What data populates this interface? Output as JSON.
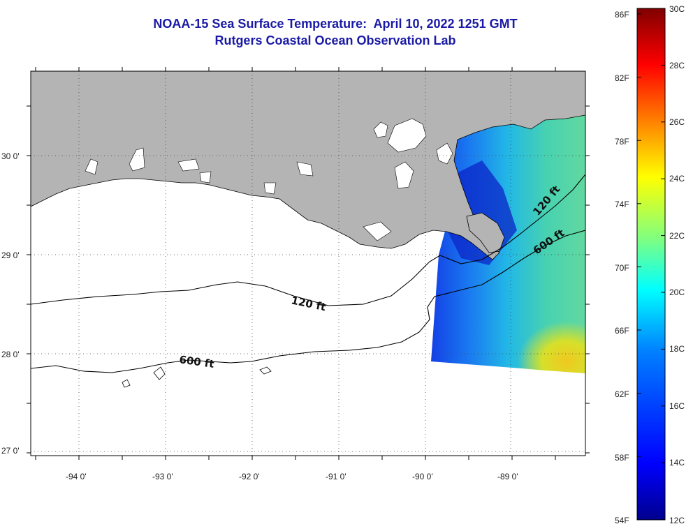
{
  "title_line1": "NOAA-15 Sea Surface Temperature:  April 10, 2022 1251 GMT",
  "title_line2": "Rutgers Coastal Ocean Observation Lab",
  "map": {
    "lat_labels": [
      "30 0'",
      "29 0'",
      "28 0'",
      "27 0'"
    ],
    "lon_labels": [
      "-94 0'",
      "-93 0'",
      "-92 0'",
      "-91 0'",
      "-90 0'",
      "-89 0'"
    ],
    "contours": [
      {
        "label": "120 ft",
        "depth_ft": 120
      },
      {
        "label": "600 ft",
        "depth_ft": 600
      },
      {
        "label": "120 ft",
        "depth_ft": 120
      },
      {
        "label": "600 ft",
        "depth_ft": 600
      }
    ],
    "land_color": "#b4b4b4",
    "graticule": "dotted"
  },
  "colorbar": {
    "fahrenheit_labels": [
      "86F",
      "82F",
      "78F",
      "74F",
      "70F",
      "66F",
      "62F",
      "58F",
      "54F"
    ],
    "celsius_labels": [
      "30C",
      "28C",
      "26C",
      "24C",
      "22C",
      "20C",
      "18C",
      "16C",
      "14C",
      "12C"
    ],
    "colors": [
      "#00008f",
      "#0000ff",
      "#0080ff",
      "#00ffff",
      "#80ff80",
      "#ffff00",
      "#ff8000",
      "#ff0000",
      "#800000"
    ]
  }
}
